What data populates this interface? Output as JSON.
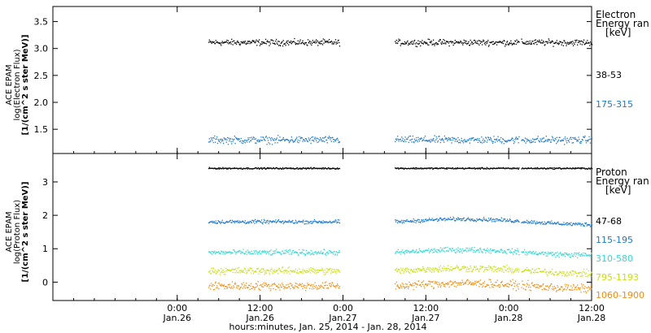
{
  "xaxis": {
    "label": "hours:minutes, Jan. 25, 2014 - Jan. 28, 2014",
    "range": [
      0,
      78
    ],
    "ticks": [
      {
        "t": 18,
        "time": "0:00",
        "date": "Jan.26"
      },
      {
        "t": 30,
        "time": "12:00",
        "date": "Jan.26"
      },
      {
        "t": 42,
        "time": "0:00",
        "date": "Jan.27"
      },
      {
        "t": 54,
        "time": "12:00",
        "date": "Jan.27"
      },
      {
        "t": 66,
        "time": "0:00",
        "date": "Jan.28"
      },
      {
        "t": 78,
        "time": "12:00",
        "date": "Jan.28"
      }
    ]
  },
  "chart_data": [
    {
      "type": "scatter",
      "panel": "electron",
      "ylabel_lines": [
        "ACE EPAM",
        "log(Electron Flux)",
        "[1/(cm^2 s ster MeV)]"
      ],
      "ylim": [
        1.05,
        3.78
      ],
      "yticks": [
        "1.5",
        "2.0",
        "2.5",
        "3.0",
        "3.5"
      ],
      "ytick_values": [
        1.5,
        2.0,
        2.5,
        3.0,
        3.5
      ],
      "legend": {
        "title_lines": [
          "Electron",
          "Energy ran",
          "[keV]"
        ]
      },
      "series": [
        {
          "name": "38-53",
          "color": "#000000",
          "base": 3.12,
          "noise": 0.05
        },
        {
          "name": "175-315",
          "color": "#1f78c8",
          "base": 1.31,
          "noise": 0.06
        }
      ]
    },
    {
      "type": "scatter",
      "panel": "proton",
      "ylabel_lines": [
        "ACE EPAM",
        "log(Proton Flux)",
        "[1/(cm^2 s ster MeV)]"
      ],
      "ylim": [
        -0.55,
        3.85
      ],
      "yticks": [
        "0",
        "1",
        "2",
        "3"
      ],
      "ytick_values": [
        0,
        1,
        2,
        3
      ],
      "legend": {
        "title_lines": [
          "Proton",
          "Energy ran",
          "[keV]"
        ]
      },
      "series": [
        {
          "name": "47-68",
          "color": "#000000",
          "base": 3.42,
          "noise": 0.02
        },
        {
          "name": "115-195",
          "color": "#1f78c8",
          "base": 1.82,
          "noise": 0.05
        },
        {
          "name": "310-580",
          "color": "#35d8d0",
          "base": 0.9,
          "noise": 0.07
        },
        {
          "name": "795-1193",
          "color": "#c8e010",
          "base": 0.35,
          "noise": 0.09
        },
        {
          "name": "1060-1900",
          "color": "#f08c10",
          "base": -0.1,
          "noise": 0.11
        }
      ]
    }
  ],
  "data_coverage": [
    [
      22.5,
      41.5
    ],
    [
      49.5,
      67.5
    ],
    [
      67.8,
      82.5
    ]
  ]
}
